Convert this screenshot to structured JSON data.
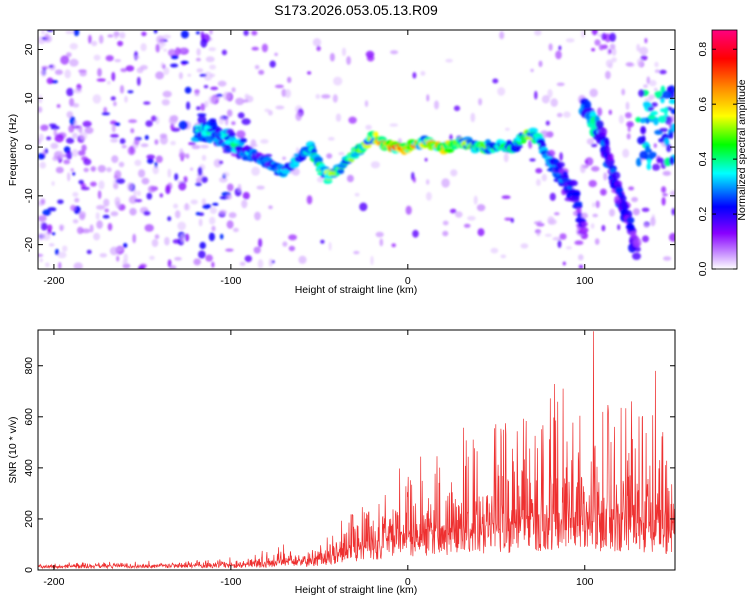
{
  "title": "S173.2026.053.05.13.R09",
  "colors": {
    "snr_line": "#ee3030",
    "axis": "#000000"
  },
  "chart_data": [
    {
      "type": "heatmap",
      "title": "S173.2026.053.05.13.R09",
      "xlabel": "Height of straight line (km)",
      "ylabel": "Frequency (Hz)",
      "xlim": [
        -209,
        151
      ],
      "ylim": [
        -25,
        24
      ],
      "x_ticks": [
        -200,
        -100,
        0,
        100
      ],
      "x_tick_labels": [
        "-200",
        "-100",
        "0",
        "100"
      ],
      "y_ticks": [
        20,
        10,
        0,
        -10,
        -20
      ],
      "y_tick_labels": [
        "20",
        "10",
        "0",
        "-10",
        "-20"
      ],
      "colorbar": {
        "label": "Normalized spectral amplitude",
        "range": [
          0,
          0.87
        ],
        "ticks": [
          0,
          0.2,
          0.4,
          0.6,
          0.8
        ],
        "tick_labels": [
          "0.0",
          "0.2",
          "0.4",
          "0.6",
          "0.8"
        ],
        "colormap": [
          "#ffffff",
          "#cc99ff",
          "#8800ff",
          "#0000ff",
          "#00ffff",
          "#00ff00",
          "#ffff00",
          "#ff8800",
          "#ff0000",
          "#ff0080"
        ]
      },
      "ridge": {
        "x": [
          -120,
          -110,
          -100,
          -90,
          -80,
          -70,
          -60,
          -55,
          -50,
          -45,
          -40,
          -35,
          -30,
          -25,
          -20,
          -15,
          -10,
          0,
          10,
          20,
          30,
          40,
          50,
          60,
          65,
          70,
          75,
          80,
          85,
          90,
          95,
          100
        ],
        "y": [
          3,
          3,
          1,
          -1,
          -3,
          -5,
          -2,
          0,
          -4,
          -6,
          -5,
          -3,
          -1,
          0,
          2,
          1,
          0,
          0,
          1,
          0,
          1,
          0,
          0,
          0,
          2,
          3,
          1,
          -3,
          -5,
          -8,
          -10,
          -18
        ],
        "amplitude": [
          0.4,
          0.4,
          0.4,
          0.35,
          0.3,
          0.35,
          0.35,
          0.4,
          0.45,
          0.6,
          0.55,
          0.5,
          0.55,
          0.5,
          0.6,
          0.65,
          0.8,
          0.7,
          0.6,
          0.65,
          0.55,
          0.5,
          0.45,
          0.4,
          0.5,
          0.55,
          0.4,
          0.35,
          0.3,
          0.3,
          0.25,
          0.2
        ]
      },
      "secondary_ridge": {
        "x": [
          100,
          105,
          110,
          115,
          120,
          125,
          130
        ],
        "y": [
          8,
          5,
          2,
          -5,
          -10,
          -15,
          -22
        ],
        "amplitude": [
          0.35,
          0.45,
          0.3,
          0.3,
          0.3,
          0.25,
          0.2
        ]
      }
    },
    {
      "type": "line",
      "xlabel": "Height of straight line (km)",
      "ylabel": "SNR (10 * v/v)",
      "xlim": [
        -209,
        151
      ],
      "ylim": [
        0,
        940
      ],
      "x_ticks": [
        -200,
        -100,
        0,
        100
      ],
      "x_tick_labels": [
        "-200",
        "-100",
        "0",
        "100"
      ],
      "y_ticks": [
        0,
        200,
        400,
        600,
        800
      ],
      "y_tick_labels": [
        "0",
        "200",
        "400",
        "600",
        "800"
      ],
      "envelope": {
        "x": [
          -209,
          -150,
          -110,
          -90,
          -80,
          -75,
          -65,
          -55,
          -45,
          -40,
          -30,
          -20,
          -10,
          0,
          10,
          20,
          30,
          40,
          50,
          60,
          70,
          80,
          90,
          100,
          105,
          110,
          120,
          130,
          140,
          151
        ],
        "base": [
          14,
          16,
          18,
          20,
          25,
          30,
          35,
          35,
          45,
          60,
          80,
          95,
          110,
          120,
          130,
          140,
          150,
          155,
          160,
          165,
          170,
          175,
          175,
          180,
          185,
          175,
          170,
          165,
          160,
          150
        ],
        "amp": [
          12,
          15,
          20,
          35,
          60,
          90,
          40,
          30,
          90,
          120,
          170,
          200,
          240,
          260,
          290,
          320,
          360,
          420,
          460,
          500,
          520,
          560,
          560,
          580,
          700,
          600,
          500,
          560,
          420,
          320
        ]
      },
      "peaks": {
        "x": [
          105,
          140
        ],
        "y": [
          935,
          780
        ]
      }
    }
  ]
}
